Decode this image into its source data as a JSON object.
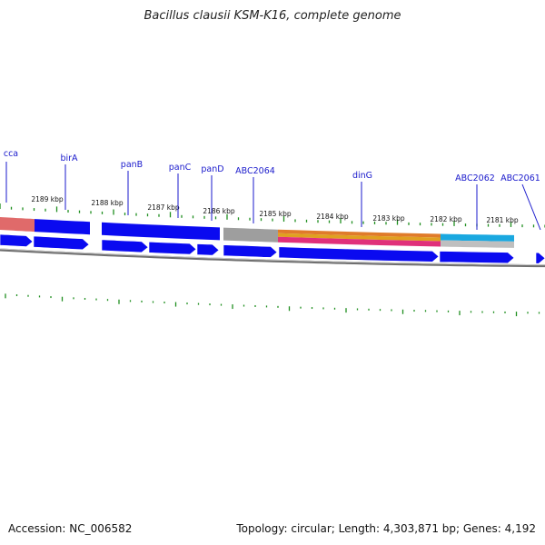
{
  "title": "Bacillus clausii KSM-K16, complete genome",
  "footer": {
    "accession": "Accession: NC_006582",
    "summary": "Topology: circular; Length: 4,303,871 bp; Genes: 4,192"
  },
  "colors": {
    "gene": "#0a0af0",
    "tick": "#1f8f1f",
    "backbone": "#7d7d7d",
    "label": "#1a1acc",
    "leader": "#1a1acc"
  },
  "gene_labels": [
    "cca",
    "birA",
    "panB",
    "panC",
    "panD",
    "ABC2064",
    "dinG",
    "ABC2062",
    "ABC2061"
  ],
  "kbp_labels": [
    "2189 kbp",
    "2188 kbp",
    "2187 kbp",
    "2186 kbp",
    "2185 kbp",
    "2184 kbp",
    "2183 kbp",
    "2182 kbp",
    "2181 kbp"
  ]
}
